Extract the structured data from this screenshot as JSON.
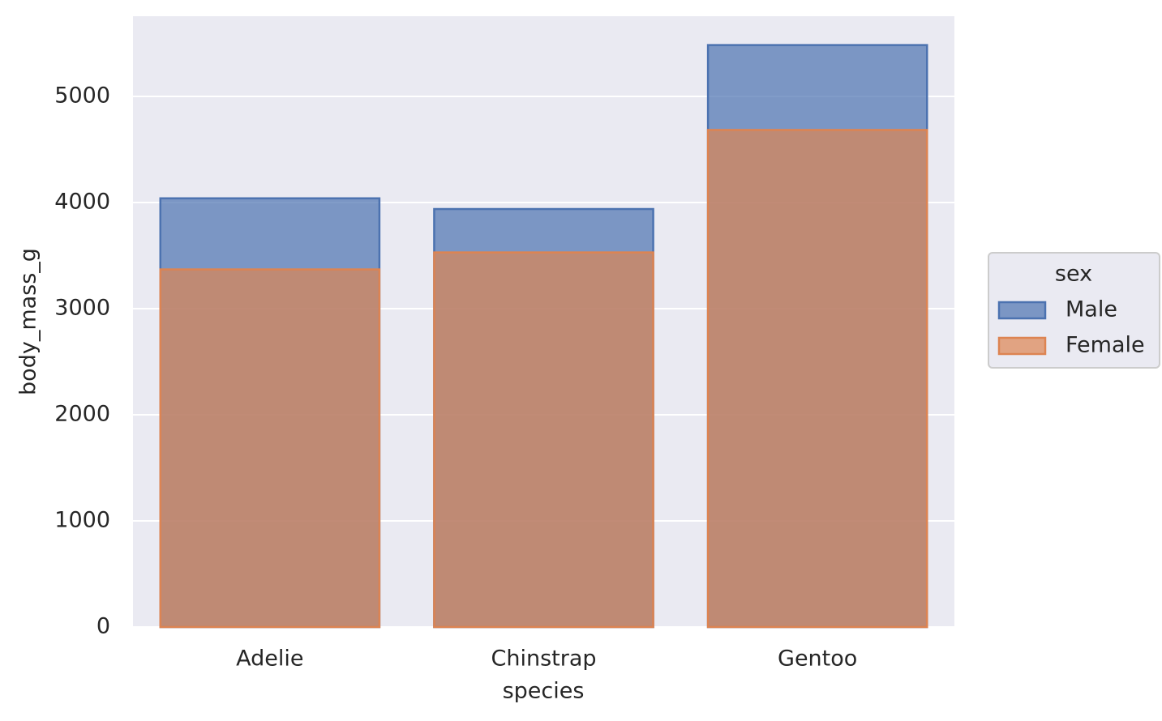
{
  "chart_data": {
    "type": "overlaid-bar",
    "x_label": "species",
    "y_label": "body_mass_g",
    "categories": [
      "Adelie",
      "Chinstrap",
      "Gentoo"
    ],
    "series": [
      {
        "name": "Male",
        "color": "#4c72b0",
        "values": [
          4040,
          3939,
          5484
        ]
      },
      {
        "name": "Female",
        "color": "#dd8452",
        "values": [
          3370,
          3530,
          4684
        ]
      }
    ],
    "ylim": [
      0,
      5756
    ],
    "yticks": [
      0,
      1000,
      2000,
      3000,
      4000,
      5000
    ],
    "grid": true,
    "legend_title": "sex",
    "legend_position": "right"
  }
}
